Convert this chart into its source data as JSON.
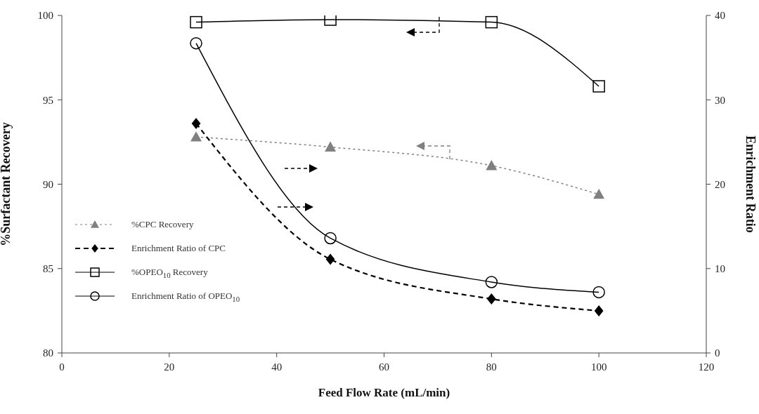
{
  "chart_data": {
    "type": "line",
    "xlabel": "Feed Flow Rate (mL/min)",
    "ylabel": "%Surfactant Recovery",
    "y2label": "Enrichment Ratio",
    "xlim": [
      0,
      120
    ],
    "xticks": [
      0,
      20,
      40,
      60,
      80,
      100,
      120
    ],
    "ylim": [
      80,
      100
    ],
    "yticks": [
      80,
      85,
      90,
      95,
      100
    ],
    "y2lim": [
      0,
      40
    ],
    "y2ticks": [
      0,
      10,
      20,
      30,
      40
    ],
    "grid": false,
    "legend": "bottom left",
    "series": [
      {
        "name": "%CPC Recovery",
        "color": "#808080",
        "x": [
          25,
          50,
          80,
          100
        ],
        "values": [
          92.8,
          92.2,
          91.1,
          89.4
        ],
        "marker": "triangle",
        "line_style": "dotted"
      },
      {
        "name": "Enrichment Ratio of CPC",
        "color": "#000000",
        "x": [
          25,
          50,
          80,
          100
        ],
        "values": [
          27.2,
          11.1,
          6.4,
          5.0
        ],
        "marker": "diamond",
        "line_style": "dashed",
        "axis": "y2"
      },
      {
        "name": "%OPEO$_{10}$ Recovery",
        "color": "#000000",
        "x": [
          25,
          50,
          80,
          100
        ],
        "values": [
          99.6,
          99.75,
          99.6,
          95.8
        ],
        "marker": "square",
        "line_style": "solid"
      },
      {
        "name": "Enrichment Ratio of OPEO$_{10}$",
        "color": "#000000",
        "x": [
          25,
          50,
          80,
          100
        ],
        "values": [
          36.7,
          13.6,
          8.4,
          7.2
        ],
        "marker": "circle",
        "line_style": "solid",
        "axis": "y2"
      }
    ]
  }
}
